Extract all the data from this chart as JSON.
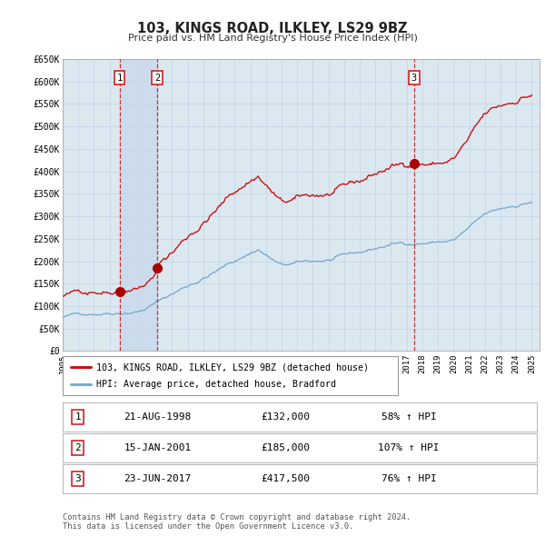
{
  "title": "103, KINGS ROAD, ILKLEY, LS29 9BZ",
  "subtitle": "Price paid vs. HM Land Registry's House Price Index (HPI)",
  "ylim": [
    0,
    650000
  ],
  "xlim_start": 1995.0,
  "xlim_end": 2025.5,
  "yticks": [
    0,
    50000,
    100000,
    150000,
    200000,
    250000,
    300000,
    350000,
    400000,
    450000,
    500000,
    550000,
    600000,
    650000
  ],
  "ytick_labels": [
    "£0",
    "£50K",
    "£100K",
    "£150K",
    "£200K",
    "£250K",
    "£300K",
    "£350K",
    "£400K",
    "£450K",
    "£500K",
    "£550K",
    "£600K",
    "£650K"
  ],
  "xticks": [
    1995,
    1996,
    1997,
    1998,
    1999,
    2000,
    2001,
    2002,
    2003,
    2004,
    2005,
    2006,
    2007,
    2008,
    2009,
    2010,
    2011,
    2012,
    2013,
    2014,
    2015,
    2016,
    2017,
    2018,
    2019,
    2020,
    2021,
    2022,
    2023,
    2024,
    2025
  ],
  "grid_color": "#c8d8e8",
  "plot_bg_color": "#dce8f0",
  "hpi_line_color": "#7aaccc",
  "price_line_color": "#cc1111",
  "sale_marker_color": "#aa0000",
  "shade_color": "#c8d8ec",
  "transactions": [
    {
      "num": 1,
      "date": "21-AUG-1998",
      "year": 1998.64,
      "price": 132000,
      "pct": "58%",
      "dir": "↑"
    },
    {
      "num": 2,
      "date": "15-JAN-2001",
      "year": 2001.04,
      "price": 185000,
      "pct": "107%",
      "dir": "↑"
    },
    {
      "num": 3,
      "date": "23-JUN-2017",
      "year": 2017.48,
      "price": 417500,
      "pct": "76%",
      "dir": "↑"
    }
  ],
  "legend_label_red": "103, KINGS ROAD, ILKLEY, LS29 9BZ (detached house)",
  "legend_label_blue": "HPI: Average price, detached house, Bradford",
  "footnote1": "Contains HM Land Registry data © Crown copyright and database right 2024.",
  "footnote2": "This data is licensed under the Open Government Licence v3.0."
}
